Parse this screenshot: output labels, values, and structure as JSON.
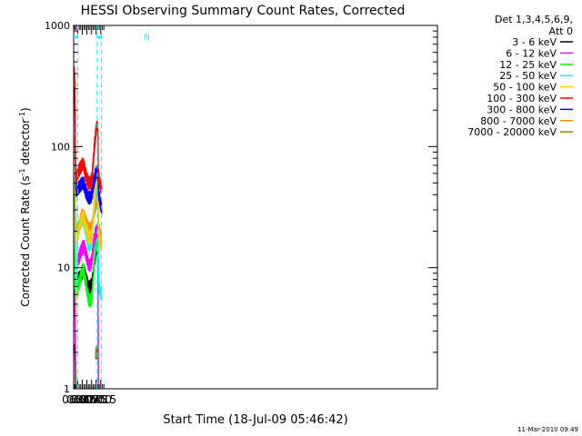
{
  "chart_data": {
    "type": "line",
    "title": "HESSI Observing Summary Count Rates, Corrected",
    "xlabel": "Start Time (18-Jul-09 05:46:42)",
    "ylabel_main": "Corrected Count Rate (s",
    "ylabel_sup1": "-1",
    "ylabel_mid": " detector",
    "ylabel_sup2": "-1",
    "ylabel_end": ")",
    "y_scale": "log",
    "ylim": [
      1,
      1000
    ],
    "xlim_min": [
      347,
      1527
    ],
    "x_ticks": [
      {
        "min": 360,
        "label": "06:00"
      },
      {
        "min": 375,
        "label": "06:15"
      },
      {
        "min": 390,
        "label": "06:30"
      },
      {
        "min": 405,
        "label": "06:45"
      },
      {
        "min": 420,
        "label": "07:00"
      },
      {
        "min": 435,
        "label": "07:15"
      }
    ],
    "y_ticks": [
      {
        "value": 1,
        "label": "1"
      },
      {
        "value": 10,
        "label": "10"
      },
      {
        "value": 100,
        "label": "100"
      },
      {
        "value": 1000,
        "label": "1000"
      }
    ],
    "legend_header_1": "Det 1,3,4,5,6,9,",
    "legend_header_2": "Att 0",
    "legend_placement": "right",
    "footer_date": "11-Mar-2010 09:49",
    "night_marker": "N",
    "vertical_markers_min": [
      360,
      423.5,
      437.5
    ],
    "top_bars_min": [
      [
        347,
        360
      ],
      [
        424,
        438
      ]
    ],
    "series": [
      {
        "name": "3 - 6 keV",
        "color": "#000000",
        "values": [
          [
            348,
            2
          ],
          [
            349.5,
            2.3
          ],
          [
            351,
            2
          ],
          [
            352.5,
            1.2
          ],
          [
            354,
            1
          ],
          [
            356,
            1
          ],
          [
            358,
            null
          ],
          [
            359,
            8
          ],
          [
            370,
            8.5
          ],
          [
            375,
            9.2
          ],
          [
            380,
            9.5
          ],
          [
            388,
            8
          ],
          [
            395,
            6.9
          ],
          [
            402,
            7
          ],
          [
            407,
            7.5
          ],
          [
            412,
            9.5
          ],
          [
            417,
            12.5
          ],
          [
            421,
            14.5
          ],
          [
            424,
            15
          ],
          [
            426,
            14
          ],
          [
            427,
            1
          ],
          [
            428,
            null
          ]
        ]
      },
      {
        "name": "6 - 12 keV",
        "color": "#ff00ff",
        "values": [
          [
            348,
            4
          ],
          [
            349.5,
            6.5
          ],
          [
            351,
            4
          ],
          [
            352.5,
            1.8
          ],
          [
            354,
            1
          ],
          [
            356,
            1
          ],
          [
            358,
            null
          ],
          [
            359,
            11
          ],
          [
            370,
            13.5
          ],
          [
            375,
            14.5
          ],
          [
            380,
            15
          ],
          [
            388,
            12.5
          ],
          [
            395,
            10.5
          ],
          [
            402,
            10.5
          ],
          [
            407,
            12
          ],
          [
            412,
            16
          ],
          [
            417,
            19
          ],
          [
            421,
            20
          ],
          [
            424,
            20
          ],
          [
            426,
            19
          ],
          [
            427,
            1
          ],
          [
            428,
            null
          ]
        ]
      },
      {
        "name": "12 - 25 keV",
        "color": "#00ff00",
        "values": [
          [
            348,
            10
          ],
          [
            349.5,
            16
          ],
          [
            351,
            10
          ],
          [
            352.5,
            3
          ],
          [
            354,
            1.5
          ],
          [
            356,
            1
          ],
          [
            358,
            null
          ],
          [
            359,
            6.5
          ],
          [
            370,
            8.5
          ],
          [
            375,
            9.5
          ],
          [
            380,
            9.5
          ],
          [
            388,
            7
          ],
          [
            395,
            5.5
          ],
          [
            402,
            5.3
          ],
          [
            407,
            6
          ],
          [
            412,
            9.5
          ],
          [
            417,
            14
          ],
          [
            421,
            15.5
          ],
          [
            424,
            15.5
          ],
          [
            426,
            14
          ],
          [
            427,
            1
          ],
          [
            428,
            null
          ]
        ]
      },
      {
        "name": "25 - 50 keV",
        "color": "#00ffff",
        "values": [
          [
            348,
            50
          ],
          [
            349.5,
            55
          ],
          [
            351,
            42
          ],
          [
            352.5,
            20
          ],
          [
            354,
            8
          ],
          [
            356,
            7
          ],
          [
            358,
            7
          ],
          [
            359,
            20
          ],
          [
            370,
            24
          ],
          [
            375,
            25
          ],
          [
            380,
            25
          ],
          [
            388,
            19
          ],
          [
            395,
            15.5
          ],
          [
            402,
            15.5
          ],
          [
            407,
            18
          ],
          [
            412,
            28
          ],
          [
            417,
            40
          ],
          [
            421,
            45
          ],
          [
            424,
            45
          ],
          [
            426,
            40
          ],
          [
            427,
            12
          ],
          [
            429,
            7
          ],
          [
            432,
            6.5
          ],
          [
            436,
            6
          ],
          [
            438,
            5.5
          ]
        ]
      },
      {
        "name": "50 - 100 keV",
        "color": "#ffcc00",
        "values": [
          [
            348,
            80
          ],
          [
            349.5,
            120
          ],
          [
            351,
            90
          ],
          [
            352.5,
            40
          ],
          [
            354,
            12
          ],
          [
            355.5,
            4
          ],
          [
            356,
            null
          ],
          [
            359,
            18
          ],
          [
            370,
            24
          ],
          [
            375,
            26
          ],
          [
            380,
            26
          ],
          [
            388,
            21
          ],
          [
            395,
            18
          ],
          [
            402,
            17.5
          ],
          [
            407,
            20
          ],
          [
            412,
            30
          ],
          [
            417,
            44
          ],
          [
            421,
            52
          ],
          [
            424,
            58
          ],
          [
            426,
            52
          ],
          [
            427,
            35
          ],
          [
            429,
            18
          ],
          [
            432,
            17
          ],
          [
            436,
            16
          ],
          [
            438,
            15
          ]
        ]
      },
      {
        "name": "100 - 300 keV",
        "color": "#ff0000",
        "values": [
          [
            348,
            380
          ],
          [
            349.5,
            440
          ],
          [
            351,
            320
          ],
          [
            352.5,
            120
          ],
          [
            354,
            60
          ],
          [
            356,
            50
          ],
          [
            359,
            60
          ],
          [
            370,
            68
          ],
          [
            375,
            72
          ],
          [
            380,
            70
          ],
          [
            388,
            56
          ],
          [
            395,
            50
          ],
          [
            402,
            50
          ],
          [
            407,
            56
          ],
          [
            412,
            85
          ],
          [
            417,
            120
          ],
          [
            421,
            140
          ],
          [
            424,
            145
          ],
          [
            426,
            130
          ],
          [
            427,
            62
          ],
          [
            429,
            56
          ],
          [
            432,
            50
          ],
          [
            436,
            45
          ],
          [
            438,
            43
          ]
        ]
      },
      {
        "name": "300 - 800 keV",
        "color": "#0000ff",
        "values": [
          [
            348,
            240
          ],
          [
            349.5,
            300
          ],
          [
            351,
            220
          ],
          [
            352.5,
            90
          ],
          [
            354,
            45
          ],
          [
            356,
            40
          ],
          [
            359,
            45
          ],
          [
            370,
            48
          ],
          [
            375,
            50
          ],
          [
            380,
            49
          ],
          [
            388,
            41
          ],
          [
            395,
            38
          ],
          [
            402,
            38
          ],
          [
            407,
            41
          ],
          [
            412,
            50
          ],
          [
            417,
            58
          ],
          [
            421,
            61
          ],
          [
            424,
            62
          ],
          [
            426,
            58
          ],
          [
            427,
            44
          ],
          [
            429,
            40
          ],
          [
            432,
            36
          ],
          [
            436,
            32
          ],
          [
            438,
            30
          ]
        ]
      },
      {
        "name": "800 - 7000 keV",
        "color": "#ff8800",
        "values": [
          [
            348,
            200
          ],
          [
            349.5,
            250
          ],
          [
            351,
            180
          ],
          [
            352.5,
            70
          ],
          [
            354,
            30
          ],
          [
            356,
            20
          ],
          [
            359,
            20
          ],
          [
            370,
            25
          ],
          [
            375,
            27
          ],
          [
            380,
            27
          ],
          [
            388,
            23
          ],
          [
            395,
            21
          ],
          [
            402,
            20.5
          ],
          [
            407,
            22
          ],
          [
            412,
            27
          ],
          [
            417,
            33
          ],
          [
            421,
            35
          ],
          [
            424,
            36
          ],
          [
            426,
            34
          ],
          [
            427,
            22
          ],
          [
            429,
            21
          ],
          [
            432,
            19
          ],
          [
            436,
            17
          ],
          [
            438,
            16
          ]
        ]
      },
      {
        "name": "7000 - 20000 keV",
        "color": "#888800",
        "values": [
          [
            348,
            30
          ],
          [
            349.5,
            40
          ],
          [
            351,
            25
          ],
          [
            352.5,
            5
          ],
          [
            354,
            1.5
          ],
          [
            355,
            1
          ],
          [
            356,
            null
          ],
          [
            418,
            2
          ],
          [
            420,
            2
          ],
          [
            422,
            2
          ],
          [
            424,
            2
          ],
          [
            425,
            2
          ],
          [
            426,
            null
          ]
        ]
      }
    ]
  }
}
